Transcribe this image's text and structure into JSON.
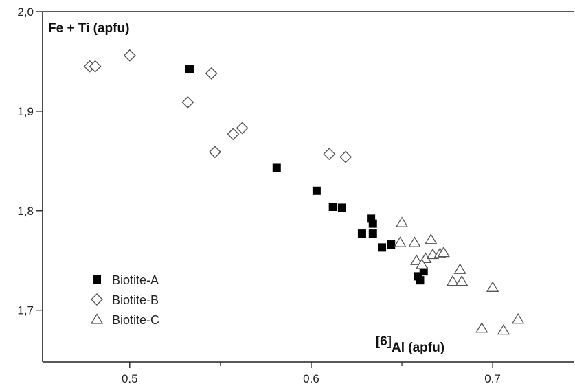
{
  "chart_data": {
    "type": "scatter",
    "title": "",
    "ylabel": "Fe + Ti (apfu)",
    "xlabel_superscript": "[6]",
    "xlabel": "Al (apfu)",
    "xlim": [
      0.452,
      0.745
    ],
    "ylim": [
      1.648,
      2.0
    ],
    "xticks": [
      0.5,
      0.6,
      0.7
    ],
    "xtick_labels": [
      "0.5",
      "0.6",
      "0.7"
    ],
    "xticks_minor": [
      0.45,
      0.55,
      0.65
    ],
    "yticks": [
      1.7,
      1.8,
      1.9,
      2.0
    ],
    "ytick_labels": [
      "1,7",
      "1,8",
      "1,9",
      "2,0"
    ],
    "grid": false,
    "legend_position": "lower-left",
    "series": [
      {
        "name": "Biotite-A",
        "marker": "filled-square",
        "color": "#000000",
        "points": [
          [
            0.533,
            1.942
          ],
          [
            0.581,
            1.843
          ],
          [
            0.603,
            1.82
          ],
          [
            0.612,
            1.804
          ],
          [
            0.617,
            1.803
          ],
          [
            0.633,
            1.792
          ],
          [
            0.634,
            1.787
          ],
          [
            0.628,
            1.777
          ],
          [
            0.634,
            1.777
          ],
          [
            0.639,
            1.763
          ],
          [
            0.644,
            1.766
          ],
          [
            0.662,
            1.739
          ],
          [
            0.659,
            1.734
          ],
          [
            0.66,
            1.73
          ]
        ]
      },
      {
        "name": "Biotite-B",
        "marker": "open-diamond",
        "color": "#555555",
        "points": [
          [
            0.478,
            1.945
          ],
          [
            0.481,
            1.945
          ],
          [
            0.5,
            1.956
          ],
          [
            0.545,
            1.938
          ],
          [
            0.532,
            1.909
          ],
          [
            0.562,
            1.883
          ],
          [
            0.557,
            1.877
          ],
          [
            0.547,
            1.859
          ],
          [
            0.61,
            1.857
          ],
          [
            0.619,
            1.854
          ]
        ]
      },
      {
        "name": "Biotite-C",
        "marker": "open-triangle",
        "color": "#555555",
        "points": [
          [
            0.65,
            1.788
          ],
          [
            0.649,
            1.768
          ],
          [
            0.657,
            1.768
          ],
          [
            0.666,
            1.771
          ],
          [
            0.658,
            1.75
          ],
          [
            0.663,
            1.752
          ],
          [
            0.667,
            1.756
          ],
          [
            0.671,
            1.757
          ],
          [
            0.673,
            1.758
          ],
          [
            0.661,
            1.746
          ],
          [
            0.682,
            1.741
          ],
          [
            0.678,
            1.729
          ],
          [
            0.683,
            1.729
          ],
          [
            0.7,
            1.723
          ],
          [
            0.714,
            1.691
          ],
          [
            0.694,
            1.682
          ],
          [
            0.706,
            1.68
          ]
        ]
      }
    ]
  }
}
